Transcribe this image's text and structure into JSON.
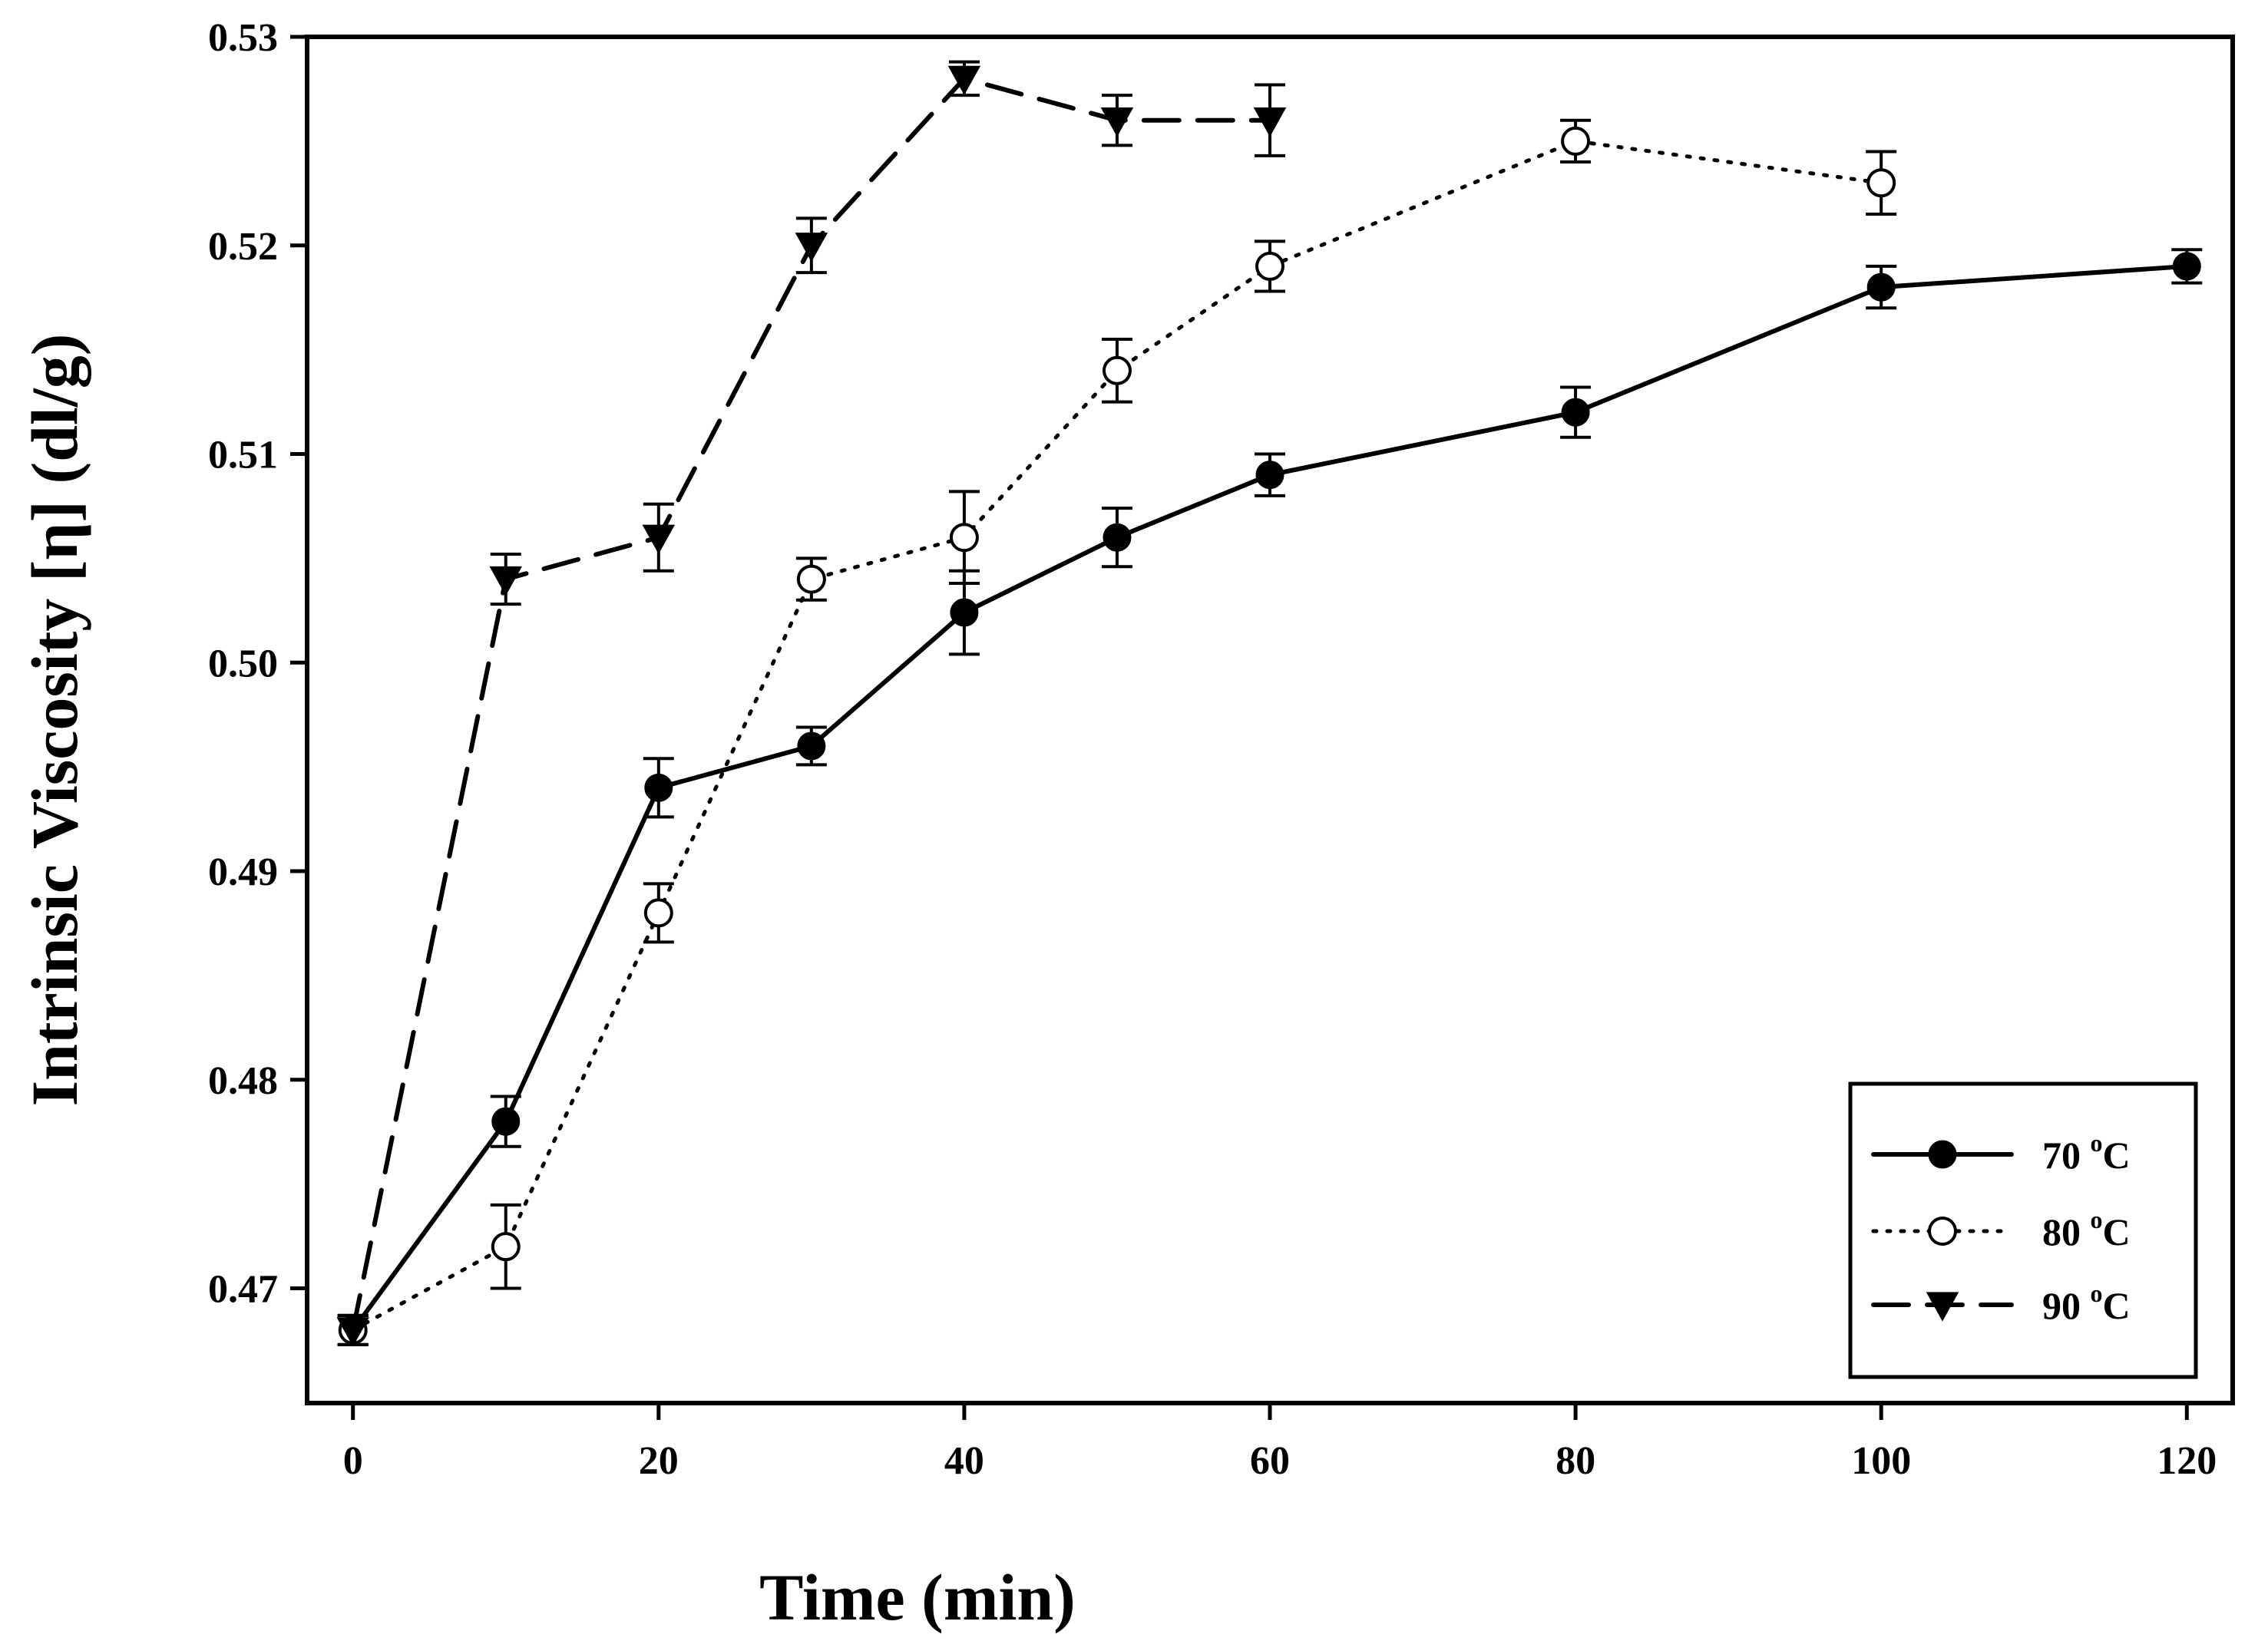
{
  "chart_data": {
    "type": "line",
    "title": "",
    "xlabel": "Time (min)",
    "ylabel": "Intrinsic Viscosity [η] (dl/g)",
    "xlim": [
      -3,
      123
    ],
    "ylim": [
      0.4645,
      0.53
    ],
    "xticks": [
      0,
      20,
      40,
      60,
      80,
      100,
      120
    ],
    "xtick_labels": [
      "0",
      "20",
      "40",
      "60",
      "80",
      "100",
      "120"
    ],
    "yticks": [
      0.47,
      0.48,
      0.49,
      0.5,
      0.51,
      0.52,
      0.53
    ],
    "ytick_labels": [
      "0.47",
      "0.48",
      "0.49",
      "0.50",
      "0.51",
      "0.52",
      "0.53"
    ],
    "grid": false,
    "legend_position": "bottom-right",
    "series": [
      {
        "name": "70 °C",
        "label_main": "70 ",
        "label_sup": "o",
        "label_unit": "C",
        "marker": "filled-circle",
        "line_style": "solid",
        "x": [
          0,
          10,
          20,
          30,
          40,
          50,
          60,
          80,
          100,
          120
        ],
        "values": [
          0.468,
          0.478,
          0.494,
          0.496,
          0.5024,
          0.506,
          0.509,
          0.512,
          0.518,
          0.519
        ],
        "errors": [
          0.0007,
          0.0012,
          0.0014,
          0.0009,
          0.002,
          0.0014,
          0.001,
          0.0012,
          0.001,
          0.0008
        ]
      },
      {
        "name": "80 °C",
        "label_main": "80 ",
        "label_sup": "o",
        "label_unit": "C",
        "marker": "open-circle",
        "line_style": "dotted",
        "x": [
          0,
          10,
          20,
          30,
          40,
          50,
          60,
          80,
          100
        ],
        "values": [
          0.468,
          0.472,
          0.488,
          0.504,
          0.506,
          0.514,
          0.519,
          0.525,
          0.523
        ],
        "errors": [
          0.0007,
          0.002,
          0.0014,
          0.001,
          0.0022,
          0.0015,
          0.0012,
          0.001,
          0.0015
        ]
      },
      {
        "name": "90 °C",
        "label_main": "90 ",
        "label_sup": "o",
        "label_unit": "C",
        "marker": "filled-triangle-down",
        "line_style": "dashed",
        "x": [
          0,
          10,
          20,
          30,
          40,
          50,
          60
        ],
        "values": [
          0.468,
          0.504,
          0.506,
          0.52,
          0.528,
          0.526,
          0.526
        ],
        "errors": [
          0.0007,
          0.0012,
          0.0016,
          0.0013,
          0.0008,
          0.0012,
          0.0017
        ]
      }
    ]
  }
}
